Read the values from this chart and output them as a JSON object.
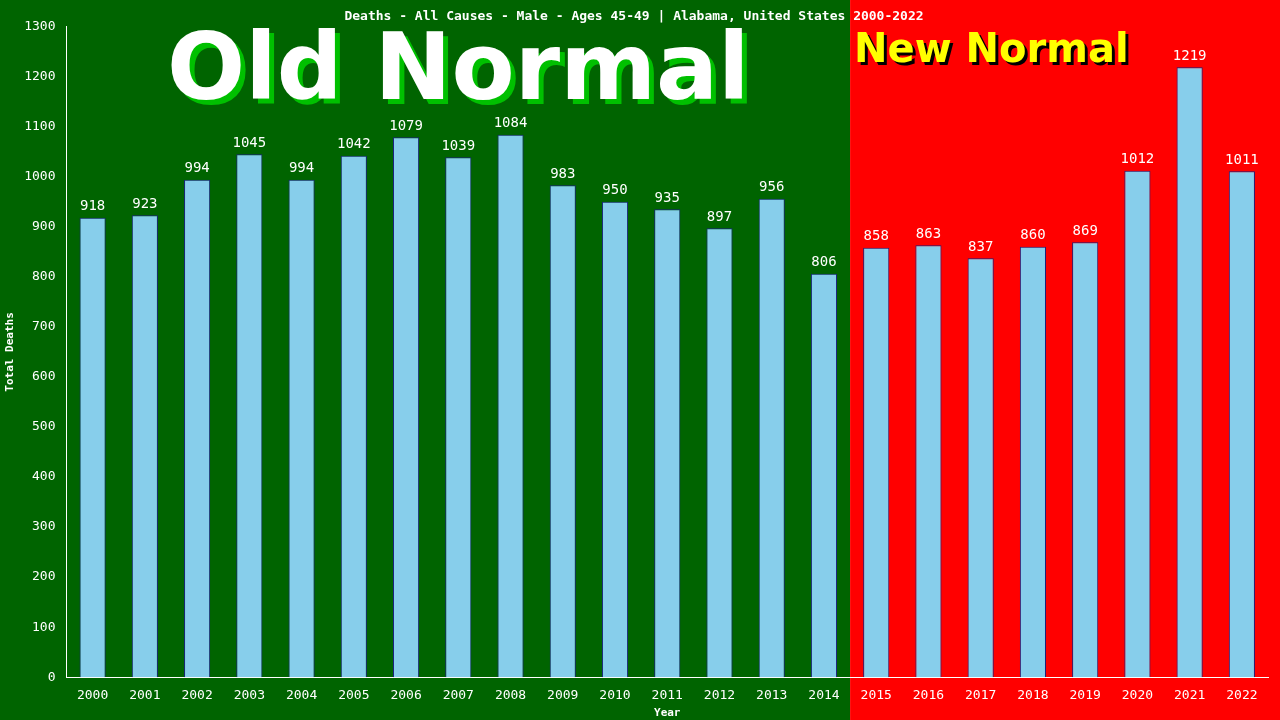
{
  "chart_data": {
    "type": "bar",
    "title": "Deaths - All Causes - Male - Ages 45-49 | Alabama, United States 2000-2022",
    "xlabel": "Year",
    "ylabel": "Total Deaths",
    "categories": [
      "2000",
      "2001",
      "2002",
      "2003",
      "2004",
      "2005",
      "2006",
      "2007",
      "2008",
      "2009",
      "2010",
      "2011",
      "2012",
      "2013",
      "2014",
      "2015",
      "2016",
      "2017",
      "2018",
      "2019",
      "2020",
      "2021",
      "2022"
    ],
    "values": [
      918,
      923,
      994,
      1045,
      994,
      1042,
      1079,
      1039,
      1084,
      983,
      950,
      935,
      897,
      956,
      806,
      858,
      863,
      837,
      860,
      869,
      1012,
      1219,
      1011
    ],
    "color": "#87ceeb",
    "data_labels": true,
    "grid": false,
    "legend": false,
    "ylim": [
      0,
      1300
    ],
    "yticks": [
      0,
      100,
      200,
      300,
      400,
      500,
      600,
      700,
      800,
      900,
      1000,
      1100,
      1200,
      1300
    ],
    "bands": [
      {
        "axis": "x",
        "from": "2000",
        "to": "2014",
        "label": "Old Normal",
        "color": "#006400"
      },
      {
        "axis": "x",
        "from": "2014",
        "to": "2022",
        "label": "New Normal",
        "color": "#ff0000"
      }
    ]
  }
}
